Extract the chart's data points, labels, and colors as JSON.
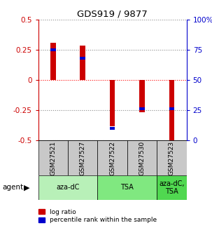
{
  "title": "GDS919 / 9877",
  "samples": [
    "GSM27521",
    "GSM27527",
    "GSM27522",
    "GSM27530",
    "GSM27523"
  ],
  "log_ratio": [
    0.305,
    0.285,
    -0.385,
    -0.27,
    -0.525
  ],
  "percentile_rank_pct": [
    75,
    68,
    10,
    26,
    26
  ],
  "left_ylim": [
    -0.5,
    0.5
  ],
  "right_ylim": [
    0,
    100
  ],
  "left_ticks": [
    -0.5,
    -0.25,
    0,
    0.25,
    0.5
  ],
  "right_ticks": [
    0,
    25,
    50,
    75,
    100
  ],
  "left_tick_labels": [
    "-0.5",
    "-0.25",
    "0",
    "0.25",
    "0.5"
  ],
  "right_tick_labels": [
    "0",
    "25",
    "50",
    "75",
    "100%"
  ],
  "groups": [
    {
      "label": "aza-dC",
      "samples": [
        "GSM27521",
        "GSM27527"
      ],
      "color": "#b8f0b8"
    },
    {
      "label": "TSA",
      "samples": [
        "GSM27522",
        "GSM27530"
      ],
      "color": "#80e880"
    },
    {
      "label": "aza-dC,\nTSA",
      "samples": [
        "GSM27523"
      ],
      "color": "#50d850"
    }
  ],
  "bar_width": 0.18,
  "red_color": "#cc0000",
  "blue_color": "#0000cc",
  "sample_box_color": "#c8c8c8",
  "agent_label": "agent",
  "legend_items": [
    {
      "color": "#cc0000",
      "label": "log ratio"
    },
    {
      "color": "#0000cc",
      "label": "percentile rank within the sample"
    }
  ]
}
